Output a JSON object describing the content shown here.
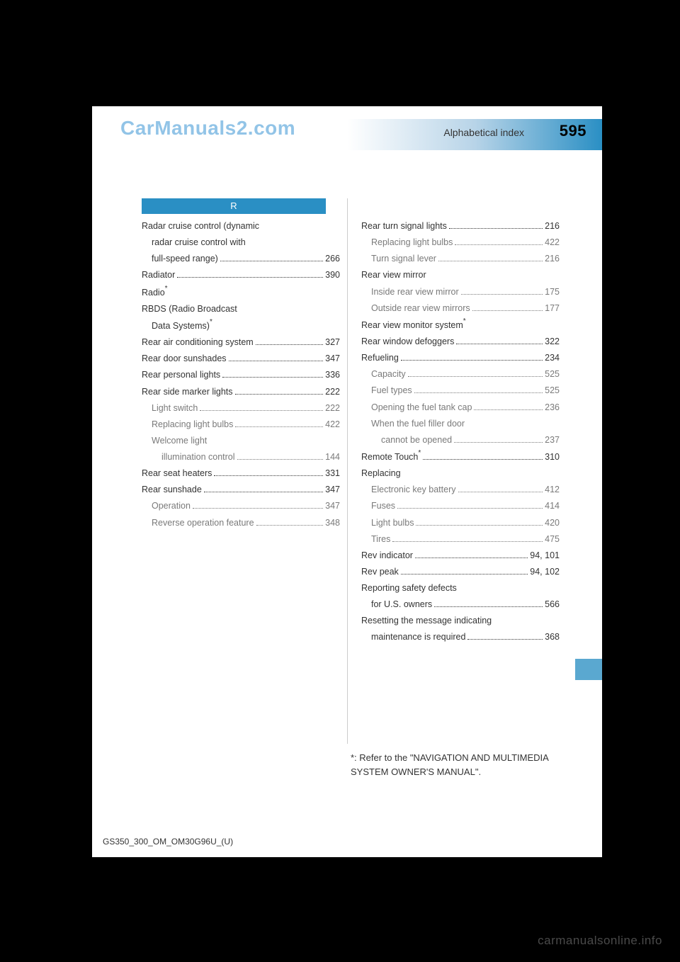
{
  "page": {
    "watermark_top": "CarManuals2.com",
    "header_title": "Alphabetical index",
    "page_number": "595",
    "section_letter": "R",
    "doc_id": "GS350_300_OM_OM30G96U_(U)",
    "footnote": "*: Refer to the \"NAVIGATION AND MULTIMEDIA SYSTEM OWNER'S MANUAL\".",
    "watermark_bottom": "carmanualsonline.info",
    "colors": {
      "accent": "#2a8fc4",
      "page_bg": "#ffffff",
      "body_bg": "#000000",
      "sub_text": "#7a7a7a"
    }
  },
  "left_col": [
    {
      "label": "Radar cruise control (dynamic",
      "page": "",
      "indent": 0,
      "nodots": true
    },
    {
      "label": "radar cruise control with",
      "page": "",
      "indent": 1,
      "nodots": true,
      "color_main": true
    },
    {
      "label": "full-speed range)",
      "page": "266",
      "indent": 1,
      "color_main": true
    },
    {
      "label": "Radiator",
      "page": "390",
      "indent": 0
    },
    {
      "label": "Radio",
      "page": "",
      "indent": 0,
      "nodots": true,
      "star": true
    },
    {
      "label": "RBDS (Radio Broadcast",
      "page": "",
      "indent": 0,
      "nodots": true
    },
    {
      "label": "Data Systems)",
      "page": "",
      "indent": 1,
      "nodots": true,
      "star": true,
      "color_main": true
    },
    {
      "label": "Rear air conditioning system",
      "page": "327",
      "indent": 0
    },
    {
      "label": "Rear door sunshades",
      "page": "347",
      "indent": 0
    },
    {
      "label": "Rear personal lights",
      "page": "336",
      "indent": 0
    },
    {
      "label": "Rear side marker lights",
      "page": "222",
      "indent": 0
    },
    {
      "label": "Light switch",
      "page": "222",
      "indent": 1
    },
    {
      "label": "Replacing light bulbs",
      "page": "422",
      "indent": 1
    },
    {
      "label": "Welcome light",
      "page": "",
      "indent": 1,
      "nodots": true
    },
    {
      "label": "illumination control",
      "page": "144",
      "indent": 2
    },
    {
      "label": "Rear seat heaters",
      "page": "331",
      "indent": 0
    },
    {
      "label": "Rear sunshade",
      "page": "347",
      "indent": 0
    },
    {
      "label": "Operation",
      "page": "347",
      "indent": 1
    },
    {
      "label": "Reverse operation feature",
      "page": "348",
      "indent": 1
    }
  ],
  "right_col": [
    {
      "label": "Rear turn signal lights",
      "page": "216",
      "indent": 0
    },
    {
      "label": "Replacing light bulbs",
      "page": "422",
      "indent": 1
    },
    {
      "label": "Turn signal lever",
      "page": "216",
      "indent": 1
    },
    {
      "label": "Rear view mirror",
      "page": "",
      "indent": 0,
      "nodots": true
    },
    {
      "label": "Inside rear view mirror",
      "page": "175",
      "indent": 1
    },
    {
      "label": "Outside rear view mirrors",
      "page": "177",
      "indent": 1
    },
    {
      "label": "Rear view monitor system",
      "page": "",
      "indent": 0,
      "nodots": true,
      "star": true
    },
    {
      "label": "Rear window defoggers",
      "page": "322",
      "indent": 0
    },
    {
      "label": "Refueling",
      "page": "234",
      "indent": 0
    },
    {
      "label": "Capacity",
      "page": "525",
      "indent": 1
    },
    {
      "label": "Fuel types",
      "page": "525",
      "indent": 1
    },
    {
      "label": "Opening the fuel tank cap",
      "page": "236",
      "indent": 1
    },
    {
      "label": "When the fuel filler door",
      "page": "",
      "indent": 1,
      "nodots": true
    },
    {
      "label": "cannot be opened",
      "page": "237",
      "indent": 2
    },
    {
      "label": "Remote Touch",
      "page": "310",
      "indent": 0,
      "star": true
    },
    {
      "label": "Replacing",
      "page": "",
      "indent": 0,
      "nodots": true
    },
    {
      "label": "Electronic key battery",
      "page": "412",
      "indent": 1
    },
    {
      "label": "Fuses",
      "page": "414",
      "indent": 1
    },
    {
      "label": "Light bulbs",
      "page": "420",
      "indent": 1
    },
    {
      "label": "Tires",
      "page": "475",
      "indent": 1
    },
    {
      "label": "Rev indicator",
      "page": "94, 101",
      "indent": 0
    },
    {
      "label": "Rev peak",
      "page": "94, 102",
      "indent": 0
    },
    {
      "label": "Reporting safety defects",
      "page": "",
      "indent": 0,
      "nodots": true
    },
    {
      "label": "for U.S. owners",
      "page": "566",
      "indent": 1,
      "color_main": true
    },
    {
      "label": "Resetting the message indicating",
      "page": "",
      "indent": 0,
      "nodots": true
    },
    {
      "label": "maintenance is required",
      "page": "368",
      "indent": 1,
      "color_main": true
    }
  ]
}
